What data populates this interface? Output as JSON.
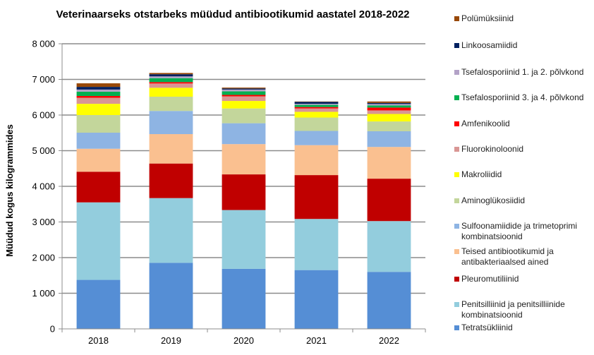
{
  "chart_data": {
    "type": "bar",
    "stacked": true,
    "title": "Veterinaarseks otstarbeks müüdud antibiootikumid aastatel 2018-2022",
    "xlabel": "",
    "ylabel": "Müüdud kogus kilogrammides",
    "ylim": [
      0,
      8000
    ],
    "yticks": [
      0,
      1000,
      2000,
      3000,
      4000,
      5000,
      6000,
      7000,
      8000
    ],
    "ytick_labels": [
      "0",
      "1 000",
      "2 000",
      "3 000",
      "4 000",
      "5 000",
      "6 000",
      "7 000",
      "8 000"
    ],
    "grid": true,
    "legend_position": "right",
    "categories": [
      "2018",
      "2019",
      "2020",
      "2021",
      "2022"
    ],
    "series": [
      {
        "name": "Tetratsükliinid",
        "color": "#558ED5",
        "values": [
          1375,
          1855,
          1685,
          1650,
          1600
        ]
      },
      {
        "name": "Penitsilliinid ja penitsilliinide kombinatsioonid",
        "color": "#93CDDD",
        "values": [
          2175,
          1815,
          1650,
          1435,
          1425
        ]
      },
      {
        "name": "Pleuromutiliinid",
        "color": "#C00000",
        "values": [
          860,
          970,
          1000,
          1230,
          1190
        ]
      },
      {
        "name": "Teised antibiootikumid ja antibakteriaalsed ained",
        "color": "#FAC090",
        "values": [
          645,
          825,
          850,
          840,
          890
        ]
      },
      {
        "name": "Sulfoonamiidide ja trimetoprimi kombinatsioonid",
        "color": "#8EB4E3",
        "values": [
          450,
          650,
          585,
          400,
          440
        ]
      },
      {
        "name": "Aminoglükosiidid",
        "color": "#C3D69B",
        "values": [
          495,
          400,
          415,
          375,
          275
        ]
      },
      {
        "name": "Makroliidid",
        "color": "#FFFF00",
        "values": [
          315,
          250,
          210,
          160,
          210
        ]
      },
      {
        "name": "Fluorokinoloonid",
        "color": "#D99694",
        "values": [
          170,
          120,
          130,
          95,
          100
        ]
      },
      {
        "name": "Amfenikoolid",
        "color": "#FF0000",
        "values": [
          50,
          40,
          40,
          40,
          80
        ]
      },
      {
        "name": "Tsefalosporiinid 3. ja 4. põlvkond",
        "color": "#00B050",
        "values": [
          120,
          110,
          100,
          60,
          60
        ]
      },
      {
        "name": "Tsefalosporiinid 1. ja 2. põlvkond",
        "color": "#B3A2C7",
        "values": [
          60,
          50,
          50,
          30,
          40
        ]
      },
      {
        "name": "Linkoosamiidid",
        "color": "#002060",
        "values": [
          75,
          60,
          30,
          55,
          30
        ]
      },
      {
        "name": "Polümüksiinid",
        "color": "#984807",
        "values": [
          100,
          35,
          25,
          10,
          40
        ]
      }
    ]
  },
  "legend": {
    "items": [
      {
        "label": "Polümüksiinid",
        "color": "#984807"
      },
      {
        "label": "Linkoosamiidid",
        "color": "#002060"
      },
      {
        "label": "Tsefalosporiinid 1. ja 2. põlvkond",
        "color": "#B3A2C7"
      },
      {
        "label": "Tsefalosporiinid 3. ja 4. põlvkond",
        "color": "#00B050"
      },
      {
        "label": "Amfenikoolid",
        "color": "#FF0000"
      },
      {
        "label": "Fluorokinoloonid",
        "color": "#D99694"
      },
      {
        "label": "Makroliidid",
        "color": "#FFFF00"
      },
      {
        "label": "Aminoglükosiidid",
        "color": "#C3D69B"
      },
      {
        "label": "Sulfoonamiidide ja trimetoprimi kombinatsioonid",
        "color": "#8EB4E3"
      },
      {
        "label": "Teised antibiootikumid ja antibakteriaalsed ained",
        "color": "#FAC090"
      },
      {
        "label": "Pleuromutiliinid",
        "color": "#C00000"
      },
      {
        "label": "Penitsilliinid ja penitsilliinide kombinatsioonid",
        "color": "#93CDDD"
      },
      {
        "label": "Tetratsükliinid",
        "color": "#558ED5"
      }
    ]
  }
}
